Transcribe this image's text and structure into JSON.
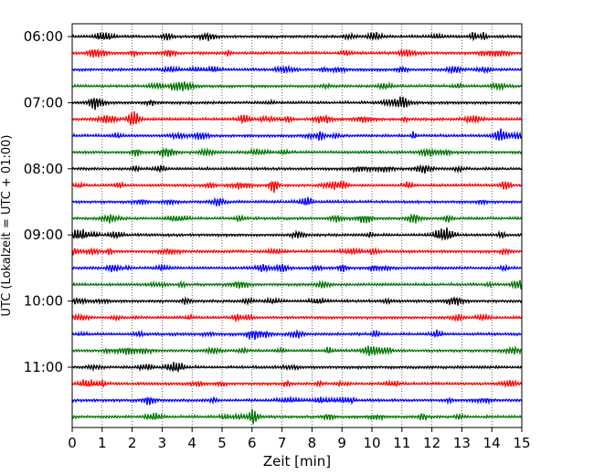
{
  "chart_data": {
    "type": "line",
    "title": "",
    "xlabel": "Zeit  [min]",
    "ylabel": "UTC (Lokalzeit = UTC + 01:00)",
    "xlim": [
      0,
      15
    ],
    "x_ticks": [
      0,
      1,
      2,
      3,
      4,
      5,
      6,
      7,
      8,
      9,
      10,
      11,
      12,
      13,
      14,
      15
    ],
    "x_tick_labels": [
      "0",
      "1",
      "2",
      "3",
      "4",
      "5",
      "6",
      "7",
      "8",
      "9",
      "10",
      "11",
      "12",
      "13",
      "14",
      "15"
    ],
    "y_tick_labels": [
      "06:00",
      "07:00",
      "08:00",
      "09:00",
      "10:00",
      "11:00"
    ],
    "y_tick_rows": [
      0,
      4,
      8,
      12,
      16,
      20
    ],
    "grid": "vertical dotted",
    "trace_minutes_per_row": 15,
    "trace_colors": [
      "#000000",
      "#ff0000",
      "#0000ff",
      "#007700"
    ],
    "rows": [
      {
        "start": "06:00",
        "color": "#000000"
      },
      {
        "start": "06:15",
        "color": "#ff0000"
      },
      {
        "start": "06:30",
        "color": "#0000ff"
      },
      {
        "start": "06:45",
        "color": "#007700"
      },
      {
        "start": "07:00",
        "color": "#000000"
      },
      {
        "start": "07:15",
        "color": "#ff0000"
      },
      {
        "start": "07:30",
        "color": "#0000ff"
      },
      {
        "start": "07:45",
        "color": "#007700"
      },
      {
        "start": "08:00",
        "color": "#000000"
      },
      {
        "start": "08:15",
        "color": "#ff0000"
      },
      {
        "start": "08:30",
        "color": "#0000ff"
      },
      {
        "start": "08:45",
        "color": "#007700"
      },
      {
        "start": "09:00",
        "color": "#000000"
      },
      {
        "start": "09:15",
        "color": "#ff0000"
      },
      {
        "start": "09:30",
        "color": "#0000ff"
      },
      {
        "start": "09:45",
        "color": "#007700"
      },
      {
        "start": "10:00",
        "color": "#000000"
      },
      {
        "start": "10:15",
        "color": "#ff0000"
      },
      {
        "start": "10:30",
        "color": "#0000ff"
      },
      {
        "start": "10:45",
        "color": "#007700"
      },
      {
        "start": "11:00",
        "color": "#000000"
      },
      {
        "start": "11:15",
        "color": "#ff0000"
      },
      {
        "start": "11:30",
        "color": "#0000ff"
      },
      {
        "start": "11:45",
        "color": "#007700"
      }
    ]
  }
}
